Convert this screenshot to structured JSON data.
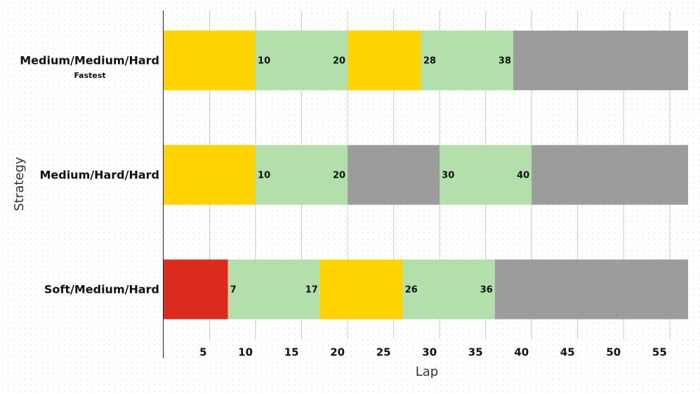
{
  "chart_data": {
    "type": "range-bar",
    "x_label": "Lap",
    "y_label": "Strategy",
    "xlim": [
      0,
      57
    ],
    "xticks": [
      5,
      10,
      15,
      20,
      25,
      30,
      35,
      40,
      45,
      50,
      55
    ],
    "grid": true,
    "bars": [
      {
        "category": "Medium/Medium/Hard",
        "note": "Fastest",
        "segments": [
          {
            "start": 0,
            "end": 10,
            "color": "#ffd200",
            "labeled": false
          },
          {
            "start": 10,
            "end": 20,
            "color": "#b2dfaa",
            "labeled": true
          },
          {
            "start": 20,
            "end": 28,
            "color": "#ffd200",
            "labeled": false
          },
          {
            "start": 28,
            "end": 38,
            "color": "#b2dfaa",
            "labeled": true
          },
          {
            "start": 38,
            "end": 57,
            "color": "#9c9c9c",
            "labeled": false
          }
        ]
      },
      {
        "category": "Medium/Hard/Hard",
        "segments": [
          {
            "start": 0,
            "end": 10,
            "color": "#ffd200",
            "labeled": false
          },
          {
            "start": 10,
            "end": 20,
            "color": "#b2dfaa",
            "labeled": true
          },
          {
            "start": 20,
            "end": 30,
            "color": "#9c9c9c",
            "labeled": false
          },
          {
            "start": 30,
            "end": 40,
            "color": "#b2dfaa",
            "labeled": true
          },
          {
            "start": 40,
            "end": 57,
            "color": "#9c9c9c",
            "labeled": false
          }
        ]
      },
      {
        "category": "Soft/Medium/Hard",
        "segments": [
          {
            "start": 0,
            "end": 7,
            "color": "#dc2a1c",
            "labeled": false
          },
          {
            "start": 7,
            "end": 17,
            "color": "#b2dfaa",
            "labeled": true
          },
          {
            "start": 17,
            "end": 26,
            "color": "#ffd200",
            "labeled": false
          },
          {
            "start": 26,
            "end": 36,
            "color": "#b2dfaa",
            "labeled": true
          },
          {
            "start": 36,
            "end": 57,
            "color": "#9c9c9c",
            "labeled": false
          }
        ]
      }
    ]
  }
}
